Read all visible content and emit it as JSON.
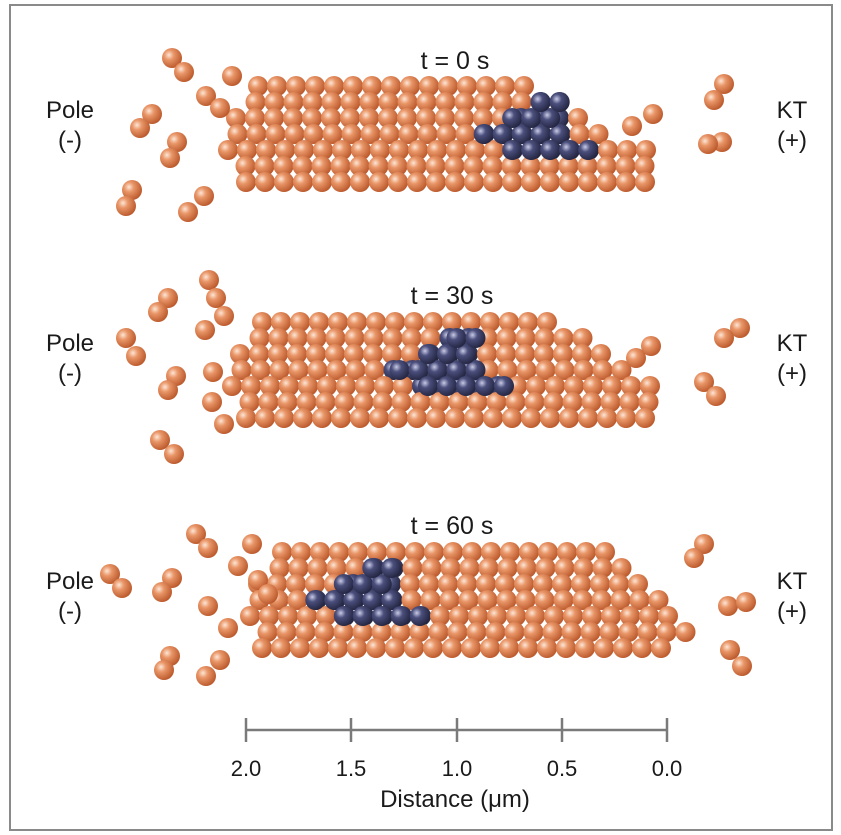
{
  "panels": [
    {
      "title": "t = 0 s",
      "time_s": 0,
      "marked_segment_center_um": 0.6
    },
    {
      "title": "t = 30 s",
      "time_s": 30,
      "marked_segment_center_um": 1.0
    },
    {
      "title": "t = 60 s",
      "time_s": 60,
      "marked_segment_center_um": 1.4
    }
  ],
  "labels": {
    "pole": "Pole",
    "pole_sign": "(-)",
    "kt": "KT",
    "kt_sign": "(+)"
  },
  "axis": {
    "title": "Distance (μm)",
    "ticks": [
      "2.0",
      "1.5",
      "1.0",
      "0.5",
      "0.0"
    ],
    "range_um": [
      2.0,
      0.0
    ]
  },
  "colors": {
    "tubulin": "#d9774a",
    "marked_tubulin": "#3b3f66",
    "axis": "#7a7a7a",
    "frame": "#8a8a8a"
  }
}
